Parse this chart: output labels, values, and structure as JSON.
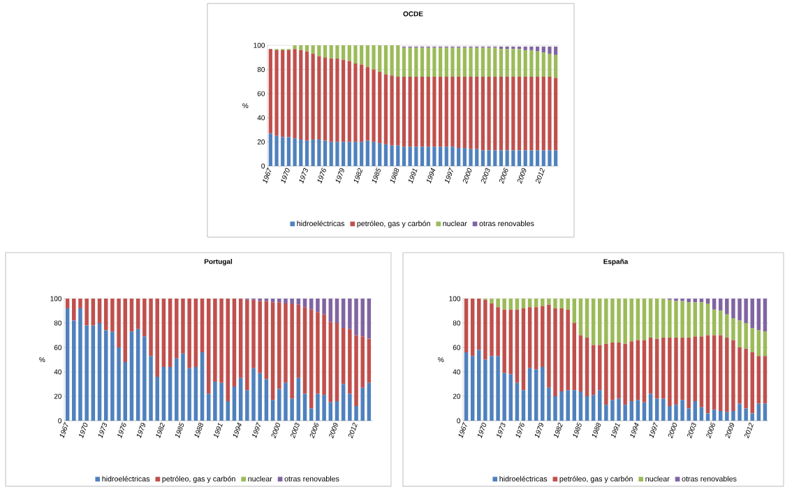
{
  "chart_data": [
    {
      "type": "bar",
      "title": "OCDE",
      "ylabel": "%",
      "stacked": true,
      "grid": "y",
      "legend": "bottom",
      "ylim": [
        0,
        100
      ],
      "yticks": [
        0,
        20,
        40,
        60,
        80,
        100
      ],
      "categories": [
        "1967",
        null,
        null,
        "1970",
        null,
        null,
        "1973",
        null,
        null,
        "1976",
        null,
        null,
        "1979",
        null,
        null,
        "1982",
        null,
        null,
        "1985",
        null,
        null,
        "1988",
        null,
        null,
        "1991",
        null,
        null,
        "1994",
        null,
        null,
        "1997",
        null,
        null,
        "2000",
        null,
        null,
        "2003",
        null,
        null,
        "2006",
        null,
        null,
        "2009",
        null,
        null,
        "2012",
        null,
        null
      ],
      "series": [
        {
          "name": "hidroeléctricas",
          "color": "#4f81bd",
          "values": [
            27,
            25,
            24,
            24,
            23,
            22,
            21,
            22,
            22,
            21,
            20,
            20,
            20,
            20,
            20,
            20,
            21,
            20,
            19,
            18,
            17,
            17,
            16,
            16,
            16,
            16,
            16,
            16,
            16,
            16,
            16,
            15,
            15,
            14,
            14,
            13,
            13,
            13,
            13,
            13,
            13,
            13,
            13,
            13,
            13,
            13,
            13,
            13
          ]
        },
        {
          "name": "petróleo, gas y carbón",
          "color": "#c0504d",
          "values": [
            70,
            71,
            72,
            72,
            74,
            74,
            74,
            71,
            69,
            69,
            69,
            69,
            68,
            67,
            65,
            64,
            61,
            60,
            59,
            58,
            58,
            57,
            58,
            58,
            58,
            58,
            58,
            58,
            58,
            58,
            58,
            59,
            59,
            60,
            60,
            61,
            61,
            61,
            61,
            61,
            61,
            61,
            61,
            61,
            61,
            61,
            61,
            60
          ]
        },
        {
          "name": "nuclear",
          "color": "#9bbb59",
          "values": [
            0,
            1,
            1,
            1,
            3,
            4,
            5,
            7,
            9,
            10,
            11,
            11,
            12,
            13,
            15,
            16,
            18,
            20,
            22,
            24,
            25,
            26,
            24,
            24,
            24,
            24,
            24,
            24,
            24,
            24,
            24,
            24,
            24,
            24,
            24,
            24,
            24,
            24,
            23,
            23,
            23,
            23,
            22,
            22,
            21,
            20,
            19,
            19
          ]
        },
        {
          "name": "otras renovables",
          "color": "#8064a2",
          "values": [
            0,
            0,
            0,
            0,
            0,
            0,
            0,
            0,
            0,
            0,
            0,
            0,
            0,
            0,
            0,
            0,
            0,
            0,
            0,
            0,
            0,
            0,
            1,
            1,
            1,
            1,
            1,
            1,
            1,
            1,
            1,
            1,
            1,
            1,
            1,
            1,
            1,
            1,
            2,
            2,
            2,
            2,
            3,
            3,
            4,
            5,
            6,
            7
          ]
        }
      ]
    },
    {
      "type": "bar",
      "title": "Portugal",
      "ylabel": "%",
      "stacked": true,
      "grid": "y",
      "legend": "bottom",
      "ylim": [
        0,
        100
      ],
      "yticks": [
        0,
        20,
        40,
        60,
        80,
        100
      ],
      "categories": [
        "1967",
        null,
        null,
        "1970",
        null,
        null,
        "1973",
        null,
        null,
        "1976",
        null,
        null,
        "1979",
        null,
        null,
        "1982",
        null,
        null,
        "1985",
        null,
        null,
        "1988",
        null,
        null,
        "1991",
        null,
        null,
        "1994",
        null,
        null,
        "1997",
        null,
        null,
        "2000",
        null,
        null,
        "2003",
        null,
        null,
        "2006",
        null,
        null,
        "2009",
        null,
        null,
        "2012",
        null,
        null
      ],
      "series": [
        {
          "name": "hidroeléctricas",
          "color": "#4f81bd",
          "values": [
            92,
            82,
            92,
            78,
            78,
            80,
            74,
            73,
            60,
            48,
            73,
            75,
            69,
            53,
            36,
            44,
            44,
            51,
            55,
            43,
            44,
            56,
            22,
            32,
            31,
            16,
            28,
            35,
            25,
            43,
            39,
            34,
            17,
            26,
            31,
            18,
            35,
            22,
            10,
            22,
            21,
            15,
            16,
            30,
            22,
            12,
            27,
            31
          ]
        },
        {
          "name": "petróleo, gas y carbón",
          "color": "#c0504d",
          "values": [
            8,
            18,
            8,
            22,
            22,
            20,
            26,
            27,
            40,
            52,
            27,
            25,
            31,
            47,
            64,
            56,
            56,
            49,
            45,
            57,
            56,
            44,
            78,
            68,
            69,
            84,
            72,
            65,
            74,
            56,
            59,
            64,
            80,
            71,
            65,
            78,
            60,
            71,
            81,
            67,
            66,
            66,
            64,
            46,
            53,
            58,
            42,
            36
          ]
        },
        {
          "name": "nuclear",
          "color": "#9bbb59",
          "values": [
            0,
            0,
            0,
            0,
            0,
            0,
            0,
            0,
            0,
            0,
            0,
            0,
            0,
            0,
            0,
            0,
            0,
            0,
            0,
            0,
            0,
            0,
            0,
            0,
            0,
            0,
            0,
            0,
            0,
            0,
            0,
            0,
            0,
            0,
            0,
            0,
            0,
            0,
            0,
            0,
            0,
            0,
            0,
            0,
            0,
            0,
            0,
            0
          ]
        },
        {
          "name": "otras renovables",
          "color": "#8064a2",
          "values": [
            0,
            0,
            0,
            0,
            0,
            0,
            0,
            0,
            0,
            0,
            0,
            0,
            0,
            0,
            0,
            0,
            0,
            0,
            0,
            0,
            0,
            0,
            0,
            0,
            0,
            0,
            0,
            0,
            1,
            1,
            2,
            2,
            3,
            3,
            4,
            4,
            5,
            7,
            9,
            11,
            13,
            19,
            20,
            24,
            25,
            30,
            31,
            33
          ]
        }
      ]
    },
    {
      "type": "bar",
      "title": "España",
      "ylabel": "%",
      "stacked": true,
      "grid": "y",
      "legend": "bottom",
      "ylim": [
        0,
        100
      ],
      "yticks": [
        0,
        20,
        40,
        60,
        80,
        100
      ],
      "categories": [
        "1967",
        null,
        null,
        "1970",
        null,
        null,
        "1973",
        null,
        null,
        "1976",
        null,
        null,
        "1979",
        null,
        null,
        "1982",
        null,
        null,
        "1985",
        null,
        null,
        "1988",
        null,
        null,
        "1991",
        null,
        null,
        "1994",
        null,
        null,
        "1997",
        null,
        null,
        "2000",
        null,
        null,
        "2003",
        null,
        null,
        "2006",
        null,
        null,
        "2009",
        null,
        null,
        "2012",
        null,
        null
      ],
      "series": [
        {
          "name": "hidroeléctricas",
          "color": "#4f81bd",
          "values": [
            56,
            53,
            58,
            50,
            53,
            53,
            39,
            38,
            31,
            25,
            43,
            42,
            44,
            27,
            20,
            24,
            25,
            25,
            24,
            20,
            21,
            25,
            13,
            17,
            18,
            13,
            16,
            17,
            15,
            22,
            18,
            18,
            12,
            13,
            17,
            10,
            16,
            11,
            6,
            9,
            8,
            7,
            8,
            14,
            10,
            6,
            14,
            14
          ]
        },
        {
          "name": "petróleo, gas y carbón",
          "color": "#c0504d",
          "values": [
            44,
            47,
            42,
            49,
            43,
            40,
            52,
            53,
            60,
            67,
            50,
            51,
            50,
            68,
            72,
            68,
            66,
            55,
            46,
            48,
            41,
            37,
            50,
            47,
            46,
            50,
            49,
            49,
            51,
            46,
            49,
            50,
            56,
            55,
            51,
            58,
            53,
            58,
            64,
            61,
            62,
            61,
            58,
            46,
            49,
            50,
            39,
            39
          ]
        },
        {
          "name": "nuclear",
          "color": "#9bbb59",
          "values": [
            0,
            0,
            0,
            1,
            4,
            7,
            9,
            9,
            9,
            8,
            7,
            7,
            6,
            5,
            8,
            8,
            9,
            20,
            30,
            32,
            38,
            38,
            37,
            36,
            36,
            37,
            35,
            34,
            34,
            32,
            33,
            32,
            31,
            30,
            30,
            29,
            28,
            28,
            26,
            21,
            20,
            19,
            18,
            22,
            21,
            20,
            21,
            20
          ]
        },
        {
          "name": "otras renovables",
          "color": "#8064a2",
          "values": [
            0,
            0,
            0,
            0,
            0,
            0,
            0,
            0,
            0,
            0,
            0,
            0,
            0,
            0,
            0,
            0,
            0,
            0,
            0,
            0,
            0,
            0,
            0,
            0,
            0,
            0,
            0,
            0,
            0,
            0,
            0,
            0,
            1,
            2,
            2,
            3,
            3,
            3,
            4,
            9,
            10,
            13,
            16,
            18,
            20,
            24,
            26,
            27
          ]
        }
      ]
    }
  ]
}
